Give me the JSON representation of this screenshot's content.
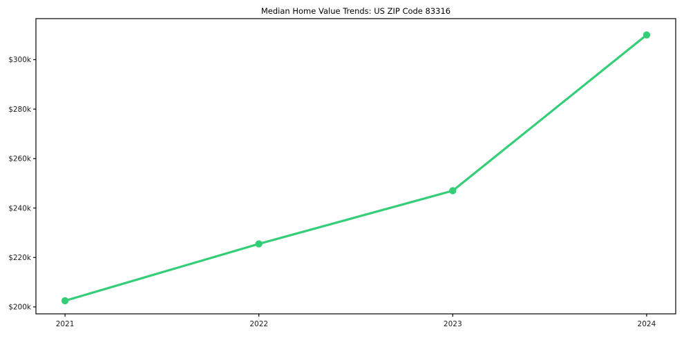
{
  "figure": {
    "background": "#ffffff"
  },
  "chart_data": {
    "type": "line",
    "title": "Median Home Value Trends: US ZIP Code 83316",
    "x": [
      2021,
      2022,
      2023,
      2024
    ],
    "x_tick_labels": [
      "2021",
      "2022",
      "2023",
      "2024"
    ],
    "series": [
      {
        "values": [
          202500,
          225500,
          247000,
          310000
        ],
        "color": "#35ce78",
        "line_width": 3.2,
        "marker": "circle",
        "marker_radius": 5.2
      }
    ],
    "y_ticks": [
      200000,
      220000,
      240000,
      260000,
      280000,
      300000
    ],
    "y_tick_labels": [
      "$200k",
      "$220k",
      "$240k",
      "$260k",
      "$280k",
      "$300k"
    ],
    "xlim": [
      2020.85,
      2024.15
    ],
    "ylim": [
      197200,
      316600
    ],
    "xlabel": "",
    "ylabel": "",
    "grid": false,
    "legend": false,
    "axis_color": "#000000",
    "tick_label_color": "#1a1a1a"
  }
}
